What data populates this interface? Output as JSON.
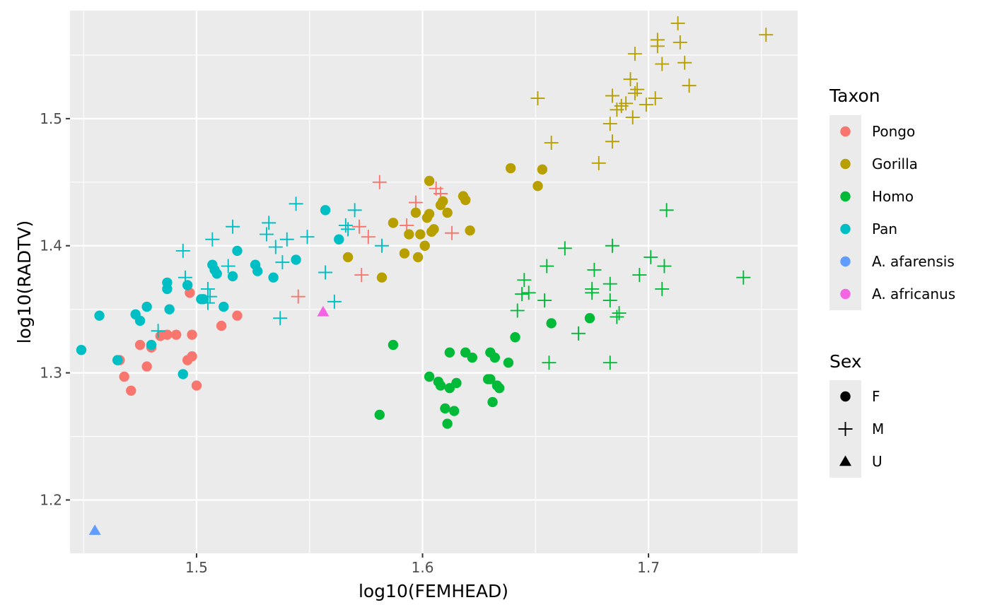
{
  "chart_data": {
    "type": "scatter",
    "xlabel": "log10(FEMHEAD)",
    "ylabel": "log10(RADTV)",
    "xlim": [
      1.444,
      1.766
    ],
    "ylim": [
      1.158,
      1.585
    ],
    "x_ticks": [
      1.5,
      1.6,
      1.7
    ],
    "x_tick_labels": [
      "1.5",
      "1.6",
      "1.7"
    ],
    "y_ticks": [
      1.2,
      1.3,
      1.4,
      1.5
    ],
    "y_tick_labels": [
      "1.2",
      "1.3",
      "1.4",
      "1.5"
    ],
    "grid": true,
    "legend_placement": "right",
    "color_legend": {
      "title": "Taxon",
      "entries": [
        {
          "label": "Pongo",
          "color": "#F8766D"
        },
        {
          "label": "Gorilla",
          "color": "#B79F00"
        },
        {
          "label": "Homo",
          "color": "#00BA38"
        },
        {
          "label": "Pan",
          "color": "#00BFC4"
        },
        {
          "label": "A. afarensis",
          "color": "#619CFF"
        },
        {
          "label": "A. africanus",
          "color": "#F564E3"
        }
      ]
    },
    "shape_legend": {
      "title": "Sex",
      "entries": [
        {
          "label": "F",
          "shape": "circle"
        },
        {
          "label": "M",
          "shape": "plus"
        },
        {
          "label": "U",
          "shape": "triangle"
        }
      ]
    },
    "series": [
      {
        "taxon": "Pongo",
        "sex": "F",
        "points": [
          [
            1.466,
            1.31
          ],
          [
            1.468,
            1.297
          ],
          [
            1.471,
            1.286
          ],
          [
            1.475,
            1.322
          ],
          [
            1.478,
            1.305
          ],
          [
            1.48,
            1.32
          ],
          [
            1.484,
            1.329
          ],
          [
            1.487,
            1.33
          ],
          [
            1.491,
            1.33
          ],
          [
            1.496,
            1.31
          ],
          [
            1.497,
            1.363
          ],
          [
            1.498,
            1.313
          ],
          [
            1.498,
            1.33
          ],
          [
            1.5,
            1.29
          ],
          [
            1.511,
            1.337
          ],
          [
            1.518,
            1.345
          ]
        ]
      },
      {
        "taxon": "Pongo",
        "sex": "M",
        "points": [
          [
            1.545,
            1.36
          ],
          [
            1.572,
            1.415
          ],
          [
            1.573,
            1.377
          ],
          [
            1.576,
            1.407
          ],
          [
            1.581,
            1.45
          ],
          [
            1.593,
            1.416
          ],
          [
            1.597,
            1.434
          ],
          [
            1.606,
            1.445
          ],
          [
            1.608,
            1.441
          ],
          [
            1.613,
            1.41
          ]
        ]
      },
      {
        "taxon": "Gorilla",
        "sex": "F",
        "points": [
          [
            1.567,
            1.391
          ],
          [
            1.582,
            1.375
          ],
          [
            1.587,
            1.418
          ],
          [
            1.592,
            1.394
          ],
          [
            1.594,
            1.409
          ],
          [
            1.597,
            1.426
          ],
          [
            1.598,
            1.391
          ],
          [
            1.599,
            1.409
          ],
          [
            1.601,
            1.4
          ],
          [
            1.602,
            1.422
          ],
          [
            1.603,
            1.425
          ],
          [
            1.603,
            1.451
          ],
          [
            1.604,
            1.411
          ],
          [
            1.605,
            1.413
          ],
          [
            1.608,
            1.432
          ],
          [
            1.609,
            1.435
          ],
          [
            1.611,
            1.426
          ],
          [
            1.618,
            1.439
          ],
          [
            1.619,
            1.436
          ],
          [
            1.621,
            1.412
          ],
          [
            1.639,
            1.461
          ],
          [
            1.651,
            1.447
          ],
          [
            1.653,
            1.46
          ]
        ]
      },
      {
        "taxon": "Gorilla",
        "sex": "M",
        "points": [
          [
            1.651,
            1.516
          ],
          [
            1.657,
            1.481
          ],
          [
            1.678,
            1.465
          ],
          [
            1.683,
            1.496
          ],
          [
            1.684,
            1.518
          ],
          [
            1.684,
            1.482
          ],
          [
            1.686,
            1.507
          ],
          [
            1.688,
            1.51
          ],
          [
            1.69,
            1.512
          ],
          [
            1.692,
            1.531
          ],
          [
            1.693,
            1.501
          ],
          [
            1.694,
            1.52
          ],
          [
            1.694,
            1.551
          ],
          [
            1.695,
            1.523
          ],
          [
            1.699,
            1.511
          ],
          [
            1.703,
            1.516
          ],
          [
            1.704,
            1.562
          ],
          [
            1.704,
            1.557
          ],
          [
            1.706,
            1.543
          ],
          [
            1.713,
            1.575
          ],
          [
            1.714,
            1.56
          ],
          [
            1.716,
            1.544
          ],
          [
            1.718,
            1.526
          ],
          [
            1.752,
            1.566
          ]
        ]
      },
      {
        "taxon": "Homo",
        "sex": "F",
        "points": [
          [
            1.581,
            1.267
          ],
          [
            1.587,
            1.322
          ],
          [
            1.603,
            1.297
          ],
          [
            1.607,
            1.293
          ],
          [
            1.608,
            1.29
          ],
          [
            1.61,
            1.272
          ],
          [
            1.611,
            1.26
          ],
          [
            1.612,
            1.288
          ],
          [
            1.612,
            1.316
          ],
          [
            1.614,
            1.27
          ],
          [
            1.615,
            1.292
          ],
          [
            1.619,
            1.316
          ],
          [
            1.622,
            1.312
          ],
          [
            1.629,
            1.295
          ],
          [
            1.63,
            1.295
          ],
          [
            1.63,
            1.316
          ],
          [
            1.631,
            1.277
          ],
          [
            1.632,
            1.312
          ],
          [
            1.633,
            1.29
          ],
          [
            1.634,
            1.288
          ],
          [
            1.638,
            1.308
          ],
          [
            1.641,
            1.328
          ],
          [
            1.657,
            1.339
          ],
          [
            1.674,
            1.343
          ]
        ]
      },
      {
        "taxon": "Homo",
        "sex": "M",
        "points": [
          [
            1.642,
            1.349
          ],
          [
            1.644,
            1.362
          ],
          [
            1.645,
            1.373
          ],
          [
            1.647,
            1.363
          ],
          [
            1.654,
            1.357
          ],
          [
            1.655,
            1.384
          ],
          [
            1.656,
            1.308
          ],
          [
            1.663,
            1.398
          ],
          [
            1.669,
            1.331
          ],
          [
            1.675,
            1.366
          ],
          [
            1.675,
            1.363
          ],
          [
            1.676,
            1.381
          ],
          [
            1.683,
            1.37
          ],
          [
            1.683,
            1.357
          ],
          [
            1.683,
            1.308
          ],
          [
            1.684,
            1.4
          ],
          [
            1.686,
            1.344
          ],
          [
            1.687,
            1.347
          ],
          [
            1.696,
            1.377
          ],
          [
            1.701,
            1.391
          ],
          [
            1.706,
            1.366
          ],
          [
            1.707,
            1.384
          ],
          [
            1.708,
            1.428
          ],
          [
            1.742,
            1.375
          ]
        ]
      },
      {
        "taxon": "Pan",
        "sex": "F",
        "points": [
          [
            1.449,
            1.318
          ],
          [
            1.457,
            1.345
          ],
          [
            1.465,
            1.31
          ],
          [
            1.473,
            1.346
          ],
          [
            1.475,
            1.341
          ],
          [
            1.478,
            1.352
          ],
          [
            1.48,
            1.322
          ],
          [
            1.487,
            1.371
          ],
          [
            1.487,
            1.366
          ],
          [
            1.488,
            1.35
          ],
          [
            1.494,
            1.299
          ],
          [
            1.496,
            1.369
          ],
          [
            1.502,
            1.358
          ],
          [
            1.503,
            1.358
          ],
          [
            1.507,
            1.385
          ],
          [
            1.508,
            1.381
          ],
          [
            1.509,
            1.378
          ],
          [
            1.512,
            1.352
          ],
          [
            1.516,
            1.376
          ],
          [
            1.518,
            1.396
          ],
          [
            1.526,
            1.385
          ],
          [
            1.527,
            1.38
          ],
          [
            1.534,
            1.375
          ],
          [
            1.544,
            1.389
          ],
          [
            1.557,
            1.428
          ],
          [
            1.563,
            1.405
          ]
        ]
      },
      {
        "taxon": "Pan",
        "sex": "M",
        "points": [
          [
            1.483,
            1.333
          ],
          [
            1.494,
            1.396
          ],
          [
            1.495,
            1.375
          ],
          [
            1.505,
            1.366
          ],
          [
            1.505,
            1.355
          ],
          [
            1.506,
            1.36
          ],
          [
            1.507,
            1.405
          ],
          [
            1.514,
            1.384
          ],
          [
            1.516,
            1.415
          ],
          [
            1.531,
            1.409
          ],
          [
            1.532,
            1.418
          ],
          [
            1.535,
            1.399
          ],
          [
            1.537,
            1.343
          ],
          [
            1.538,
            1.387
          ],
          [
            1.54,
            1.405
          ],
          [
            1.544,
            1.433
          ],
          [
            1.549,
            1.407
          ],
          [
            1.557,
            1.379
          ],
          [
            1.561,
            1.356
          ],
          [
            1.566,
            1.416
          ],
          [
            1.567,
            1.413
          ],
          [
            1.57,
            1.428
          ],
          [
            1.582,
            1.4
          ]
        ]
      },
      {
        "taxon": "A. afarensis",
        "sex": "U",
        "points": [
          [
            1.455,
            1.176
          ]
        ]
      },
      {
        "taxon": "A. africanus",
        "sex": "U",
        "points": [
          [
            1.556,
            1.348
          ]
        ]
      }
    ]
  }
}
